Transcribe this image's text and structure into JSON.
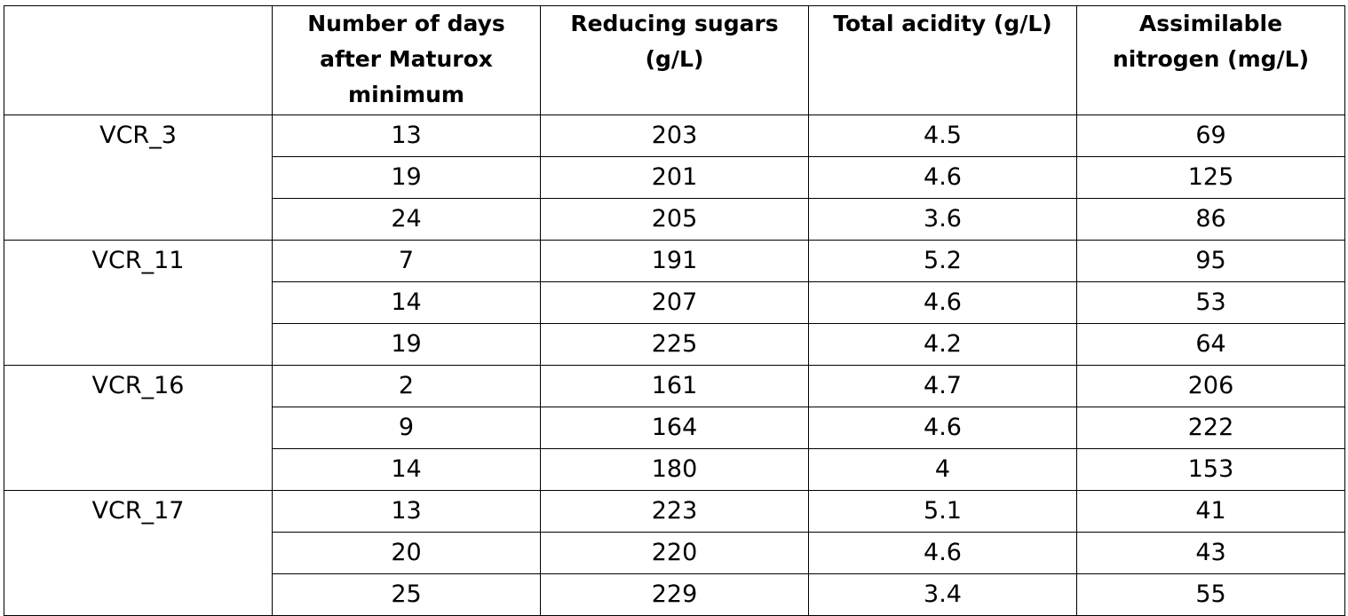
{
  "headers": [
    "",
    "Number of days after Maturox minimum",
    "Reducing sugars (g/L)",
    "Total acidity (g/L)",
    "Assimilable nitrogen (mg/L)"
  ],
  "header_lines": [
    [],
    [
      "Number of days",
      "after Maturox",
      "minimum"
    ],
    [
      "Reducing sugars",
      "(g/L)"
    ],
    [
      "Total acidity (g/L)"
    ],
    [
      "Assimilable",
      "nitrogen (mg/L)"
    ]
  ],
  "groups": [
    {
      "label": "VCR_3",
      "rows": [
        {
          "days": "13",
          "sugars": "203",
          "acidity": "4.5",
          "nitrogen": "69"
        },
        {
          "days": "19",
          "sugars": "201",
          "acidity": "4.6",
          "nitrogen": "125"
        },
        {
          "days": "24",
          "sugars": "205",
          "acidity": "3.6",
          "nitrogen": "86"
        }
      ]
    },
    {
      "label": "VCR_11",
      "rows": [
        {
          "days": "7",
          "sugars": "191",
          "acidity": "5.2",
          "nitrogen": "95"
        },
        {
          "days": "14",
          "sugars": "207",
          "acidity": "4.6",
          "nitrogen": "53"
        },
        {
          "days": "19",
          "sugars": "225",
          "acidity": "4.2",
          "nitrogen": "64"
        }
      ]
    },
    {
      "label": "VCR_16",
      "rows": [
        {
          "days": "2",
          "sugars": "161",
          "acidity": "4.7",
          "nitrogen": "206"
        },
        {
          "days": "9",
          "sugars": "164",
          "acidity": "4.6",
          "nitrogen": "222"
        },
        {
          "days": "14",
          "sugars": "180",
          "acidity": "4",
          "nitrogen": "153"
        }
      ]
    },
    {
      "label": "VCR_17",
      "rows": [
        {
          "days": "13",
          "sugars": "223",
          "acidity": "5.1",
          "nitrogen": "41"
        },
        {
          "days": "20",
          "sugars": "220",
          "acidity": "4.6",
          "nitrogen": "43"
        },
        {
          "days": "25",
          "sugars": "229",
          "acidity": "3.4",
          "nitrogen": "55"
        }
      ]
    }
  ]
}
